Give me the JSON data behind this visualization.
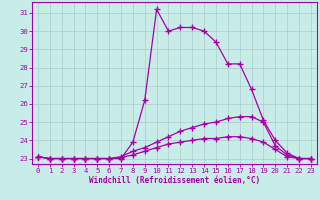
{
  "xlabel": "Windchill (Refroidissement éolien,°C)",
  "background_color": "#c8ece8",
  "grid_color": "#aacccc",
  "line_color": "#aa00aa",
  "xlim": [
    -0.5,
    23.5
  ],
  "ylim": [
    22.7,
    31.6
  ],
  "xticks": [
    0,
    1,
    2,
    3,
    4,
    5,
    6,
    7,
    8,
    9,
    10,
    11,
    12,
    13,
    14,
    15,
    16,
    17,
    18,
    19,
    20,
    21,
    22,
    23
  ],
  "yticks": [
    23,
    24,
    25,
    26,
    27,
    28,
    29,
    30,
    31
  ],
  "line1_x": [
    0,
    1,
    2,
    3,
    4,
    5,
    6,
    7,
    8,
    9,
    10,
    11,
    12,
    13,
    14,
    15,
    16,
    17,
    18,
    19,
    20,
    21,
    22,
    23
  ],
  "line1_y": [
    23.1,
    23.0,
    23.0,
    23.0,
    23.0,
    23.0,
    23.0,
    23.0,
    23.9,
    26.2,
    31.2,
    30.0,
    30.2,
    30.2,
    30.0,
    29.4,
    28.2,
    28.2,
    26.8,
    25.1,
    24.0,
    23.3,
    23.0,
    23.0
  ],
  "line2_x": [
    0,
    1,
    2,
    3,
    4,
    5,
    6,
    7,
    8,
    9,
    10,
    11,
    12,
    13,
    14,
    15,
    16,
    17,
    18,
    19,
    20,
    21,
    22,
    23
  ],
  "line2_y": [
    23.1,
    23.0,
    23.0,
    23.0,
    23.0,
    23.0,
    23.0,
    23.1,
    23.4,
    23.6,
    23.9,
    24.2,
    24.5,
    24.7,
    24.9,
    25.0,
    25.2,
    25.3,
    25.3,
    25.0,
    23.7,
    23.2,
    23.0,
    23.0
  ],
  "line3_x": [
    0,
    1,
    2,
    3,
    4,
    5,
    6,
    7,
    8,
    9,
    10,
    11,
    12,
    13,
    14,
    15,
    16,
    17,
    18,
    19,
    20,
    21,
    22,
    23
  ],
  "line3_y": [
    23.1,
    23.0,
    23.0,
    23.0,
    23.0,
    23.0,
    23.0,
    23.05,
    23.2,
    23.4,
    23.6,
    23.8,
    23.9,
    24.0,
    24.1,
    24.1,
    24.2,
    24.2,
    24.1,
    23.9,
    23.5,
    23.1,
    23.0,
    23.0
  ],
  "marker": "+",
  "markersize": 4,
  "markeredgewidth": 1.0,
  "linewidth": 0.9,
  "tick_fontsize": 5.2,
  "xlabel_fontsize": 5.5
}
